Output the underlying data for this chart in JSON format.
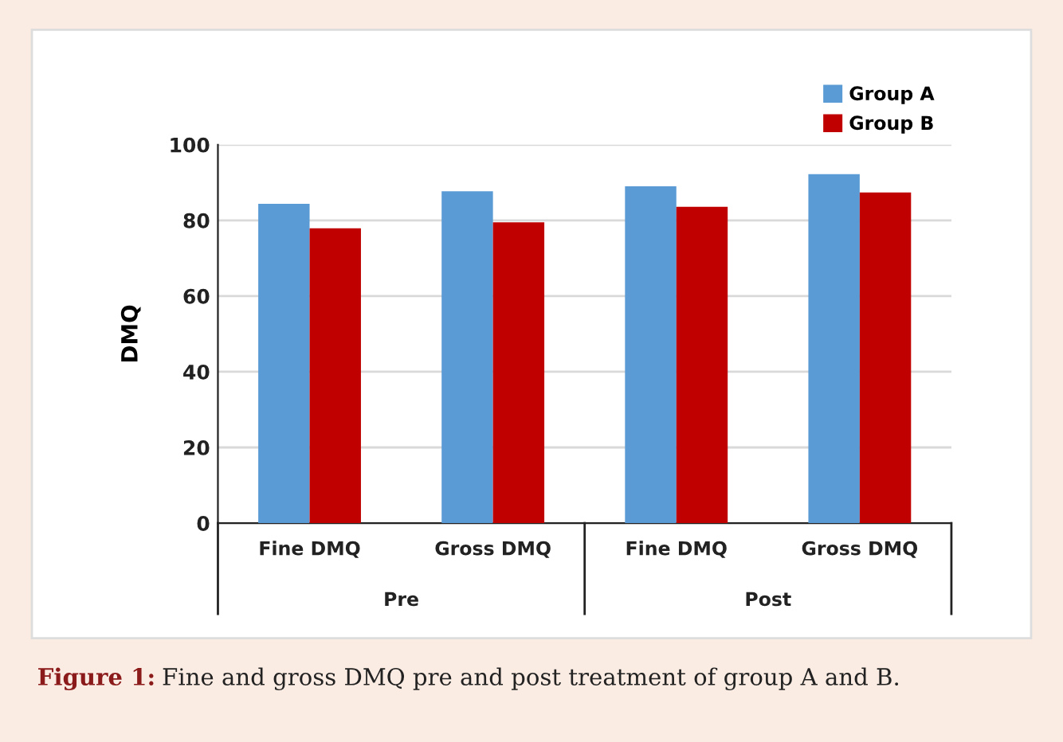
{
  "chart_data": {
    "type": "bar",
    "ylabel": "DMQ",
    "categories": [
      "Fine DMQ",
      "Gross DMQ",
      "Fine DMQ",
      "Gross DMQ"
    ],
    "series": [
      {
        "name": "Group A",
        "color": "#5b9bd5",
        "values": [
          84.4,
          87.7,
          89.0,
          92.2
        ]
      },
      {
        "name": "Group B",
        "color": "#c00000",
        "values": [
          77.9,
          79.5,
          83.6,
          87.4
        ]
      }
    ],
    "ylim": [
      0,
      100
    ],
    "yticks": [
      0,
      20,
      40,
      60,
      80,
      100
    ],
    "grid": "y",
    "legend": "top right",
    "annotations": [
      "Pre",
      "Post",
      "Figure 1: Fine and gross DMQ pre and post treatment of group A and B."
    ]
  }
}
